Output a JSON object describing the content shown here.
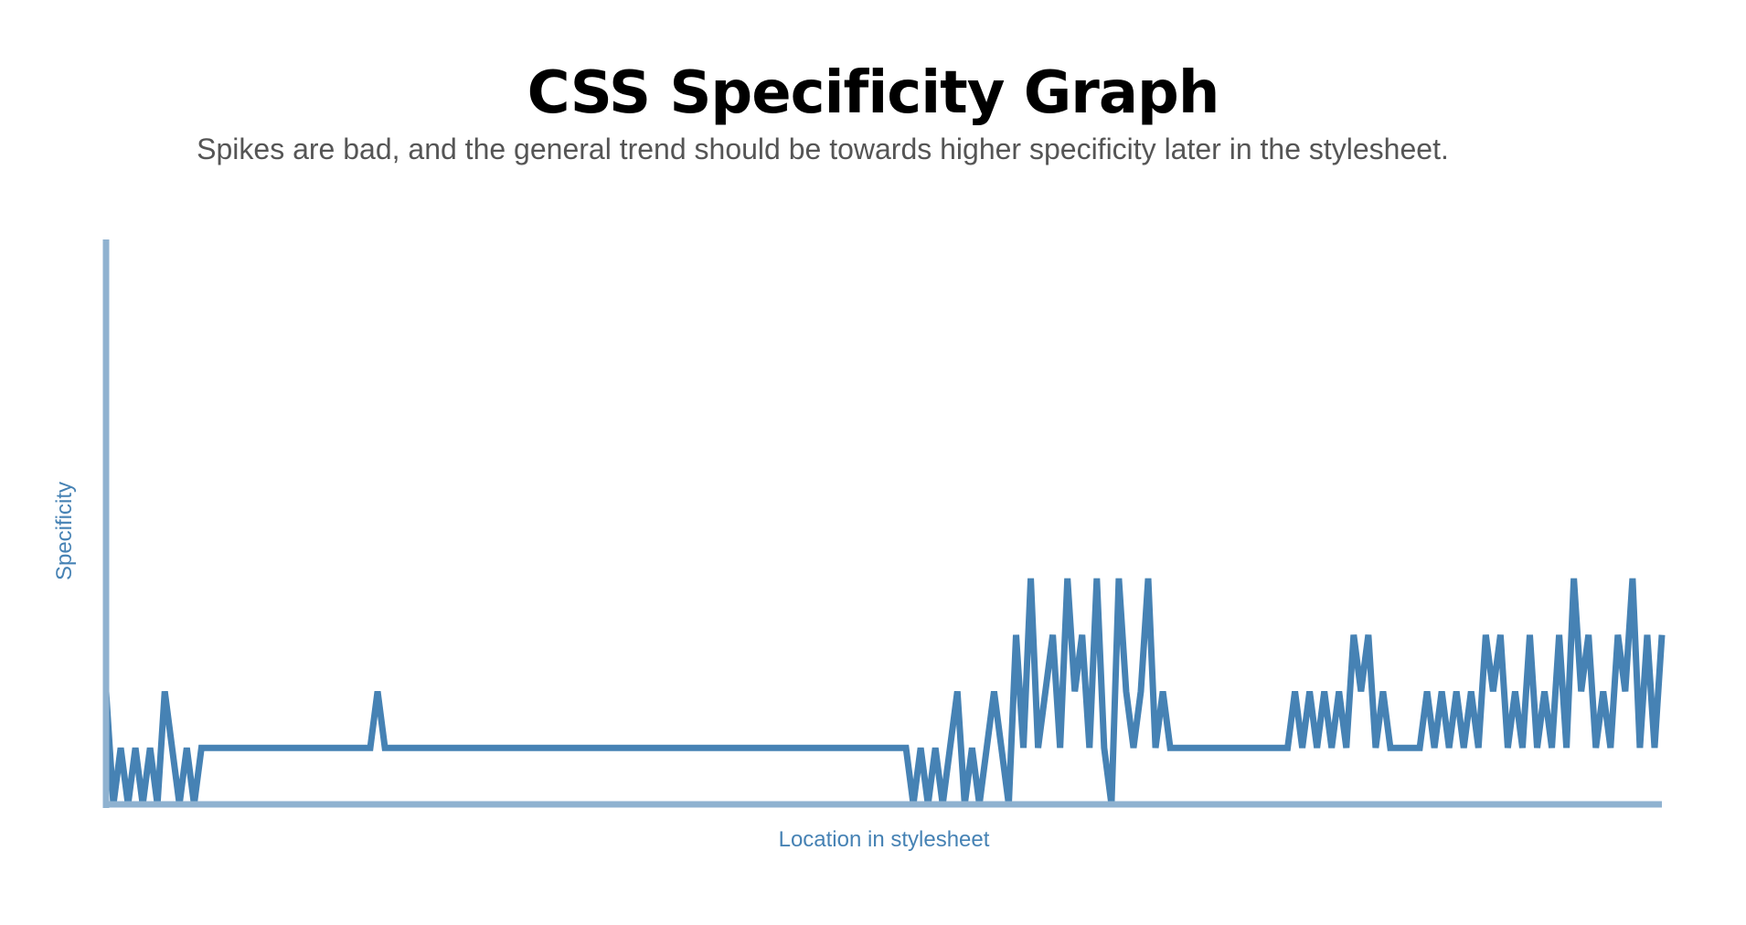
{
  "header": {
    "title": "CSS Specificity Graph",
    "subtitle": "Spikes are bad, and the general trend should be towards higher specificity later in the stylesheet."
  },
  "colors": {
    "line": "#4682b4",
    "axis": "#8fb2d0",
    "axis_label": "#4682b4",
    "title": "#000000",
    "subtitle": "#555555"
  },
  "chart_data": {
    "type": "line",
    "title": "CSS Specificity Graph",
    "subtitle": "Spikes are bad, and the general trend should be towards higher specificity later in the stylesheet.",
    "xlabel": "Location in stylesheet",
    "ylabel": "Specificity",
    "x_tick_labels": false,
    "y_tick_labels": false,
    "grid": false,
    "legend": "none",
    "ylim": [
      0,
      100
    ],
    "series": [
      {
        "values": [
          20,
          0,
          10,
          0,
          10,
          0,
          10,
          0,
          20,
          10,
          0,
          10,
          0,
          10,
          10,
          10,
          10,
          10,
          10,
          10,
          10,
          10,
          10,
          10,
          10,
          10,
          10,
          10,
          10,
          10,
          10,
          10,
          10,
          10,
          10,
          10,
          10,
          20,
          10,
          10,
          10,
          10,
          10,
          10,
          10,
          10,
          10,
          10,
          10,
          10,
          10,
          10,
          10,
          10,
          10,
          10,
          10,
          10,
          10,
          10,
          10,
          10,
          10,
          10,
          10,
          10,
          10,
          10,
          10,
          10,
          10,
          10,
          10,
          10,
          10,
          10,
          10,
          10,
          10,
          10,
          10,
          10,
          10,
          10,
          10,
          10,
          10,
          10,
          10,
          10,
          10,
          10,
          10,
          10,
          10,
          10,
          10,
          10,
          10,
          10,
          10,
          10,
          10,
          10,
          10,
          10,
          10,
          10,
          10,
          10,
          0,
          10,
          0,
          10,
          0,
          10,
          20,
          0,
          10,
          0,
          10,
          20,
          10,
          0,
          30,
          10,
          40,
          10,
          20,
          30,
          10,
          40,
          20,
          30,
          10,
          40,
          10,
          0,
          40,
          20,
          10,
          20,
          40,
          10,
          20,
          10,
          10,
          10,
          10,
          10,
          10,
          10,
          10,
          10,
          10,
          10,
          10,
          10,
          10,
          10,
          10,
          10,
          20,
          10,
          20,
          10,
          20,
          10,
          20,
          10,
          30,
          20,
          30,
          10,
          20,
          10,
          10,
          10,
          10,
          10,
          20,
          10,
          20,
          10,
          20,
          10,
          20,
          10,
          30,
          20,
          30,
          10,
          20,
          10,
          30,
          10,
          20,
          10,
          30,
          10,
          40,
          20,
          30,
          10,
          20,
          10,
          30,
          20,
          40,
          10,
          30,
          10,
          30
        ]
      }
    ]
  }
}
